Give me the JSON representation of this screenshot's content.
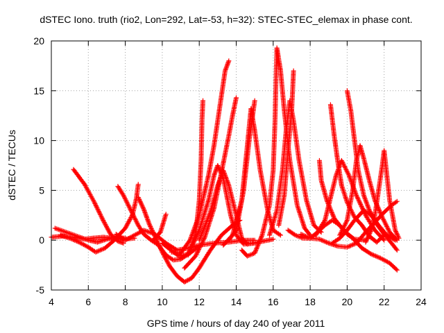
{
  "chart_data": {
    "type": "scatter",
    "title": "dSTEC Iono. truth (rio2, Lon=292, Lat=-53, h=32): STEC-STEC_elemax in phase cont.",
    "xlabel": "GPS time / hours of day 240 of year 2011",
    "ylabel": "dSTEC  / TECUs",
    "xlim": [
      4,
      24
    ],
    "ylim": [
      -5,
      20
    ],
    "xticks": [
      4,
      6,
      8,
      10,
      12,
      14,
      16,
      18,
      20,
      22,
      24
    ],
    "yticks": [
      -5,
      0,
      5,
      10,
      15,
      20
    ],
    "grid": true,
    "marker": "+",
    "color": "#ff0000",
    "series": [
      {
        "points": [
          [
            4.0,
            0.3
          ],
          [
            4.6,
            0.4
          ],
          [
            5.2,
            0.3
          ],
          [
            5.8,
            0.1
          ],
          [
            6.2,
            0.2
          ],
          [
            6.8,
            0.3
          ],
          [
            7.4,
            0.2
          ],
          [
            8.0,
            0.1
          ],
          [
            8.5,
            0.2
          ]
        ]
      },
      {
        "points": [
          [
            4.2,
            1.2
          ],
          [
            4.8,
            0.8
          ],
          [
            5.4,
            0.4
          ],
          [
            6.0,
            0.0
          ],
          [
            6.5,
            -0.2
          ],
          [
            7.0,
            0.1
          ],
          [
            7.5,
            0.3
          ],
          [
            8.0,
            0.2
          ]
        ]
      },
      {
        "points": [
          [
            5.2,
            7.1
          ],
          [
            5.8,
            5.6
          ],
          [
            6.3,
            3.9
          ],
          [
            6.8,
            2.0
          ],
          [
            7.2,
            0.6
          ],
          [
            7.6,
            -0.1
          ],
          [
            7.9,
            -0.3
          ]
        ]
      },
      {
        "points": [
          [
            4.5,
            0.5
          ],
          [
            5.0,
            0.2
          ],
          [
            5.5,
            -0.2
          ],
          [
            6.0,
            -0.7
          ],
          [
            6.4,
            -1.2
          ],
          [
            6.9,
            -0.8
          ],
          [
            7.4,
            0.0
          ],
          [
            8.0,
            1.2
          ],
          [
            8.4,
            2.6
          ],
          [
            8.6,
            4.2
          ],
          [
            8.7,
            5.6
          ]
        ]
      },
      {
        "points": [
          [
            7.6,
            5.4
          ],
          [
            7.9,
            4.5
          ],
          [
            8.3,
            3.0
          ],
          [
            8.7,
            1.5
          ],
          [
            9.0,
            0.6
          ],
          [
            9.4,
            0.0
          ],
          [
            9.8,
            -0.5
          ],
          [
            10.2,
            -1.5
          ],
          [
            10.6,
            -2.0
          ],
          [
            11.0,
            -1.9
          ],
          [
            11.5,
            -1.3
          ],
          [
            12.0,
            -0.6
          ]
        ]
      },
      {
        "points": [
          [
            8.7,
            4.3
          ],
          [
            9.0,
            3.1
          ],
          [
            9.3,
            1.6
          ],
          [
            9.6,
            0.4
          ],
          [
            10.0,
            -1.2
          ],
          [
            10.4,
            -2.6
          ],
          [
            10.8,
            -3.6
          ],
          [
            11.2,
            -4.2
          ],
          [
            11.6,
            -3.8
          ],
          [
            12.0,
            -2.8
          ],
          [
            12.6,
            -1.0
          ],
          [
            13.2,
            0.5
          ],
          [
            13.8,
            1.5
          ],
          [
            14.2,
            2.0
          ]
        ]
      },
      {
        "points": [
          [
            7.5,
            0.6
          ],
          [
            8.0,
            0.0
          ],
          [
            8.5,
            0.5
          ],
          [
            9.0,
            1.0
          ],
          [
            9.6,
            0.6
          ],
          [
            10.2,
            -0.3
          ],
          [
            10.8,
            -1.0
          ],
          [
            11.4,
            -0.8
          ],
          [
            12.0,
            -0.5
          ],
          [
            12.8,
            -0.3
          ],
          [
            13.6,
            -0.2
          ],
          [
            14.4,
            0.0
          ],
          [
            15.0,
            0.0
          ]
        ]
      },
      {
        "points": [
          [
            9.5,
            0.0
          ],
          [
            9.9,
            0.8
          ],
          [
            10.2,
            2.6
          ]
        ]
      },
      {
        "points": [
          [
            10.0,
            -0.3
          ],
          [
            10.4,
            -0.9
          ],
          [
            10.9,
            -1.6
          ],
          [
            11.4,
            -1.4
          ],
          [
            11.8,
            0.5
          ],
          [
            12.0,
            4.0
          ],
          [
            12.1,
            8.0
          ],
          [
            12.15,
            12.0
          ],
          [
            12.2,
            14.0
          ]
        ]
      },
      {
        "points": [
          [
            10.5,
            -1.2
          ],
          [
            11.0,
            -1.3
          ],
          [
            11.5,
            0.0
          ],
          [
            12.0,
            2.5
          ],
          [
            12.5,
            6.5
          ],
          [
            12.8,
            9.5
          ],
          [
            13.0,
            12.0
          ],
          [
            13.2,
            14.5
          ],
          [
            13.4,
            17.0
          ],
          [
            13.6,
            18.0
          ]
        ]
      },
      {
        "points": [
          [
            11.2,
            -2.8
          ],
          [
            11.8,
            -1.6
          ],
          [
            12.3,
            0.3
          ],
          [
            12.8,
            3.2
          ],
          [
            13.2,
            6.8
          ],
          [
            13.6,
            10.5
          ],
          [
            13.8,
            12.5
          ],
          [
            14.0,
            14.3
          ]
        ]
      },
      {
        "points": [
          [
            11.4,
            -1.5
          ],
          [
            12.0,
            1.0
          ],
          [
            12.5,
            4.0
          ],
          [
            12.8,
            6.5
          ],
          [
            13.0,
            7.5
          ],
          [
            13.3,
            6.2
          ],
          [
            13.7,
            2.5
          ],
          [
            14.0,
            0.5
          ],
          [
            14.4,
            -0.4
          ],
          [
            15.0,
            -0.3
          ]
        ]
      },
      {
        "points": [
          [
            12.0,
            0.0
          ],
          [
            12.6,
            2.8
          ],
          [
            13.0,
            5.5
          ],
          [
            13.3,
            7.0
          ],
          [
            13.6,
            5.5
          ],
          [
            14.0,
            2.5
          ],
          [
            14.3,
            0.2
          ],
          [
            14.6,
            -0.4
          ],
          [
            15.2,
            -0.2
          ],
          [
            16.0,
            0.1
          ]
        ]
      },
      {
        "points": [
          [
            13.3,
            -0.5
          ],
          [
            13.8,
            0.5
          ],
          [
            14.3,
            4.0
          ],
          [
            14.6,
            9.5
          ],
          [
            14.8,
            13.2
          ],
          [
            15.0,
            11.0
          ],
          [
            15.3,
            7.0
          ],
          [
            15.7,
            3.0
          ],
          [
            16.0,
            1.0
          ],
          [
            16.4,
            0.5
          ]
        ]
      },
      {
        "points": [
          [
            13.6,
            0.0
          ],
          [
            14.0,
            1.0
          ],
          [
            14.4,
            5.0
          ],
          [
            14.7,
            10.0
          ],
          [
            15.0,
            14.0
          ]
        ]
      },
      {
        "points": [
          [
            14.3,
            -1.0
          ],
          [
            14.6,
            -1.6
          ],
          [
            15.0,
            -1.3
          ],
          [
            15.4,
            0.5
          ],
          [
            15.8,
            3.5
          ],
          [
            16.0,
            7.0
          ],
          [
            16.1,
            12.0
          ],
          [
            16.15,
            16.0
          ],
          [
            16.2,
            19.3
          ],
          [
            16.4,
            17.0
          ],
          [
            16.6,
            13.0
          ],
          [
            16.9,
            8.0
          ],
          [
            17.3,
            3.5
          ],
          [
            17.7,
            1.2
          ],
          [
            18.0,
            0.5
          ]
        ]
      },
      {
        "points": [
          [
            15.8,
            0.5
          ],
          [
            16.2,
            3.0
          ],
          [
            16.5,
            7.0
          ],
          [
            16.7,
            11.0
          ],
          [
            16.9,
            14.0
          ],
          [
            17.1,
            12.0
          ],
          [
            17.4,
            8.0
          ],
          [
            17.8,
            4.0
          ],
          [
            18.2,
            1.5
          ],
          [
            18.6,
            0.8
          ]
        ]
      },
      {
        "points": [
          [
            16.3,
            1.5
          ],
          [
            16.6,
            4.5
          ],
          [
            16.8,
            9.0
          ],
          [
            17.0,
            13.0
          ],
          [
            17.1,
            17.0
          ]
        ]
      },
      {
        "points": [
          [
            16.8,
            1.0
          ],
          [
            17.2,
            0.5
          ],
          [
            17.6,
            0.2
          ],
          [
            18.0,
            0.2
          ],
          [
            18.4,
            0.8
          ],
          [
            18.8,
            1.5
          ],
          [
            19.2,
            2.0
          ],
          [
            19.6,
            1.5
          ],
          [
            20.0,
            0.6
          ],
          [
            20.4,
            0.1
          ],
          [
            21.0,
            0.0
          ]
        ]
      },
      {
        "points": [
          [
            17.5,
            0.6
          ],
          [
            18.0,
            0.2
          ],
          [
            18.5,
            0.1
          ],
          [
            19.0,
            -0.3
          ],
          [
            19.5,
            -0.6
          ],
          [
            20.0,
            -0.7
          ],
          [
            20.5,
            -0.3
          ],
          [
            21.0,
            0.8
          ],
          [
            21.5,
            1.8
          ],
          [
            22.0,
            2.8
          ],
          [
            22.4,
            3.5
          ],
          [
            22.7,
            3.9
          ]
        ]
      },
      {
        "points": [
          [
            18.5,
            8.0
          ],
          [
            18.6,
            6.0
          ],
          [
            18.9,
            4.0
          ],
          [
            19.3,
            2.2
          ],
          [
            19.8,
            1.0
          ],
          [
            20.3,
            0.2
          ],
          [
            20.8,
            -0.8
          ],
          [
            21.3,
            -1.4
          ],
          [
            21.8,
            -1.8
          ],
          [
            22.3,
            -2.3
          ],
          [
            22.7,
            -3.0
          ]
        ]
      },
      {
        "points": [
          [
            19.1,
            13.6
          ],
          [
            19.3,
            10.5
          ],
          [
            19.5,
            7.8
          ],
          [
            19.7,
            5.5
          ],
          [
            20.0,
            3.8
          ],
          [
            20.4,
            2.3
          ],
          [
            20.8,
            1.5
          ],
          [
            21.2,
            0.4
          ],
          [
            21.6,
            -0.2
          ],
          [
            22.0,
            0.5
          ]
        ]
      },
      {
        "points": [
          [
            18.3,
            0.5
          ],
          [
            18.8,
            2.0
          ],
          [
            19.2,
            5.0
          ],
          [
            19.4,
            6.5
          ],
          [
            19.7,
            8.0
          ],
          [
            20.1,
            6.5
          ],
          [
            20.5,
            4.5
          ],
          [
            21.0,
            2.5
          ],
          [
            21.5,
            1.0
          ],
          [
            22.0,
            0.0
          ]
        ]
      },
      {
        "points": [
          [
            20.0,
            15.0
          ],
          [
            20.2,
            13.0
          ],
          [
            20.4,
            10.0
          ],
          [
            20.6,
            7.0
          ],
          [
            20.9,
            4.5
          ],
          [
            21.2,
            3.0
          ],
          [
            21.6,
            1.6
          ],
          [
            22.0,
            0.6
          ],
          [
            22.4,
            -0.3
          ],
          [
            22.7,
            -1.0
          ]
        ]
      },
      {
        "points": [
          [
            19.6,
            0.5
          ],
          [
            20.0,
            2.0
          ],
          [
            20.3,
            5.0
          ],
          [
            20.5,
            8.0
          ],
          [
            20.7,
            9.5
          ],
          [
            20.9,
            8.2
          ],
          [
            21.2,
            6.0
          ],
          [
            21.5,
            4.0
          ],
          [
            21.9,
            2.3
          ],
          [
            22.3,
            0.8
          ],
          [
            22.7,
            0.0
          ]
        ]
      },
      {
        "points": [
          [
            21.0,
            -0.2
          ],
          [
            21.3,
            1.0
          ],
          [
            21.5,
            2.5
          ],
          [
            21.7,
            5.0
          ],
          [
            21.9,
            7.5
          ],
          [
            22.0,
            9.0
          ],
          [
            22.3,
            4.0
          ],
          [
            22.6,
            1.0
          ],
          [
            22.8,
            0.2
          ]
        ]
      },
      {
        "points": [
          [
            19.2,
            -0.3
          ],
          [
            19.6,
            0.2
          ],
          [
            20.0,
            1.0
          ],
          [
            20.4,
            2.0
          ],
          [
            20.9,
            3.0
          ],
          [
            21.3,
            2.5
          ],
          [
            21.7,
            1.5
          ],
          [
            22.1,
            0.6
          ],
          [
            22.6,
            0.0
          ]
        ]
      }
    ]
  }
}
